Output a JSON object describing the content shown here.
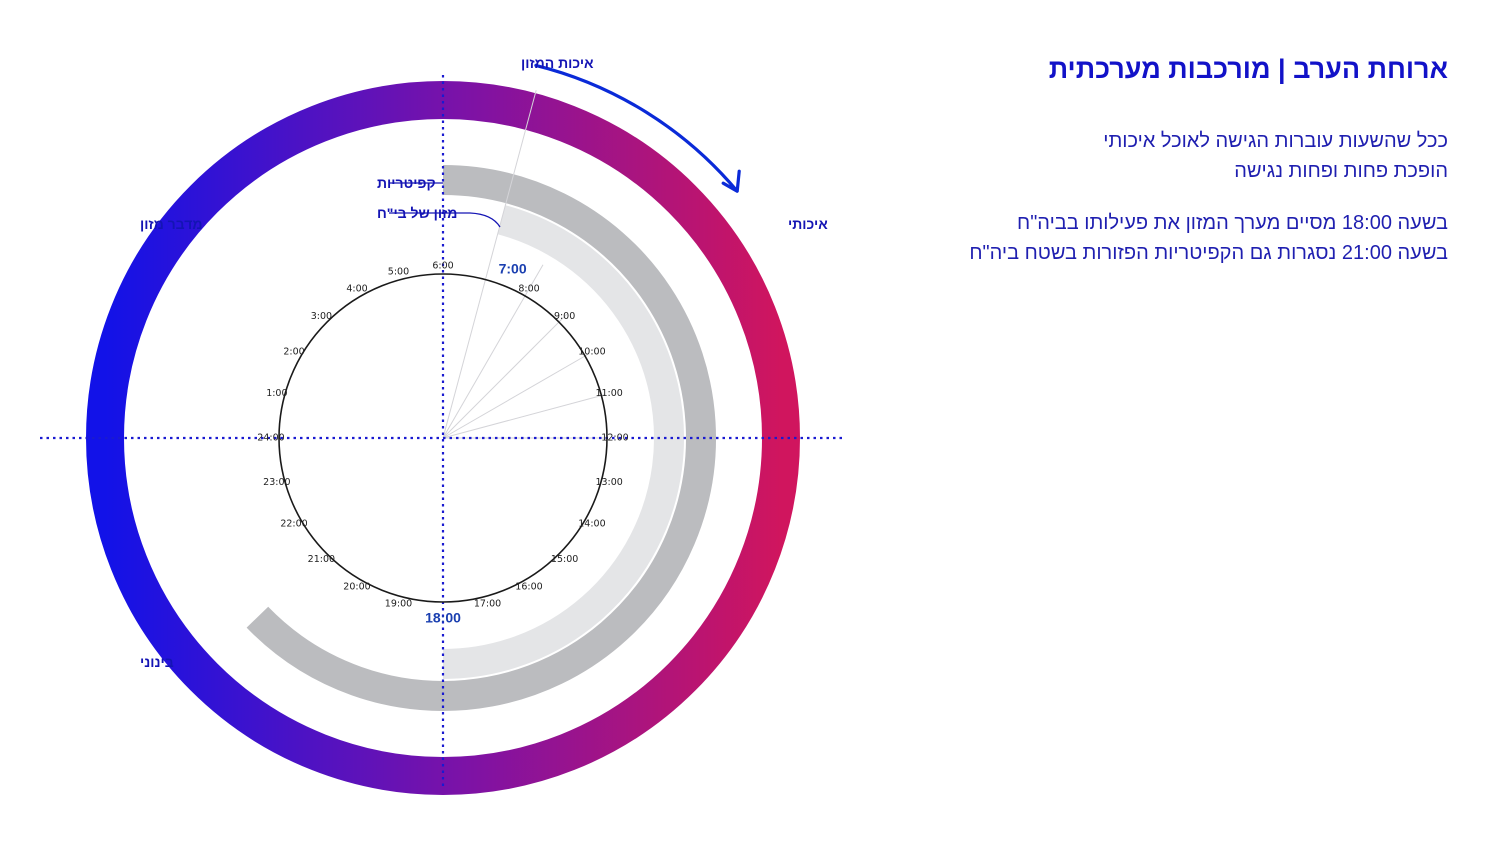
{
  "panel": {
    "title": "ארוחת הערב | מורכבות מערכתית",
    "line1": "ככל שהשעות עוברות הגישה לאוכל איכותי",
    "line2": "הופכת פחות ופחות נגישה",
    "line3": "בשעה 18:00 מסיים מערך המזון את פעילותו בביה\"ח",
    "line4": "בשעה 21:00 נסגרות גם הקפיטריות  הפזורות בשטח ביה\"ח"
  },
  "diagram": {
    "labels": {
      "top": "איכות המזון",
      "right": "איכותי",
      "left": "מדבר מזון",
      "bottom_left": "בינוני",
      "cafeterias": "קפיטריות",
      "hospital_food": "מזון של בי\"ח"
    },
    "hours": [
      "1:00",
      "2:00",
      "3:00",
      "4:00",
      "5:00",
      "6:00",
      "7:00",
      "8:00",
      "9:00",
      "10:00",
      "11:00",
      "12:00",
      "13:00",
      "14:00",
      "15:00",
      "16:00",
      "17:00",
      "18:00",
      "19:00",
      "20:00",
      "21:00",
      "22:00",
      "23:00",
      "24:00"
    ],
    "highlight_hours": [
      "7:00",
      "18:00"
    ],
    "bands": {
      "hospital_food": {
        "start_hour": 7,
        "end_hour": 18
      },
      "cafeterias": {
        "start_hour": 6,
        "end_hour": 21
      }
    },
    "colors": {
      "quality_high": "#d0155e",
      "quality_mid": "#7a12a8",
      "quality_low": "#1212e8",
      "cafeteria_band": "#bbbcbf",
      "hospital_band": "#e4e5e7",
      "axis": "#1a1ad0",
      "arrow": "#0a2ad8"
    }
  }
}
